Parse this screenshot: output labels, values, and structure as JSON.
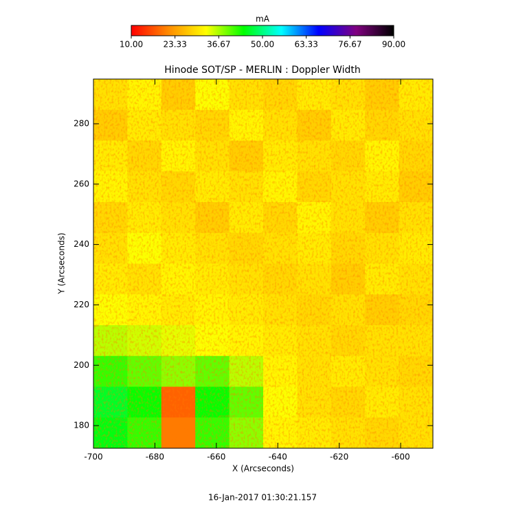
{
  "chart_data": {
    "type": "heatmap",
    "title": "Hinode SOT/SP - MERLIN : Doppler Width",
    "x_label": "X (Arcseconds)",
    "y_label": "Y (Arcseconds)",
    "timestamp": "16-Jan-2017 01:30:21.157",
    "colorbar_label": "mA",
    "colorbar_lim": [
      10,
      90
    ],
    "colorbar_ticks": [
      {
        "value": 10,
        "label": "10.00"
      },
      {
        "value": 23.33,
        "label": "23.33"
      },
      {
        "value": 36.67,
        "label": "36.67"
      },
      {
        "value": 50,
        "label": "50.00"
      },
      {
        "value": 63.33,
        "label": "63.33"
      },
      {
        "value": 76.67,
        "label": "76.67"
      },
      {
        "value": 90,
        "label": "90.00"
      }
    ],
    "colormap": [
      "#ff0000",
      "#ff8c00",
      "#ffff00",
      "#00ff00",
      "#00ffff",
      "#0000ff",
      "#800080",
      "#000000"
    ],
    "xlim": [
      -700,
      -589.5
    ],
    "ylim": [
      172.5,
      294.8
    ],
    "xticks": [
      -700,
      -680,
      -660,
      -640,
      -620,
      -600
    ],
    "yticks": [
      180,
      200,
      220,
      240,
      260,
      280
    ],
    "z": [
      [
        30,
        32,
        28,
        33,
        30,
        29,
        31,
        30,
        28,
        31
      ],
      [
        28,
        31,
        30,
        29,
        32,
        30,
        28,
        31,
        29,
        30
      ],
      [
        31,
        29,
        32,
        30,
        28,
        31,
        30,
        29,
        32,
        29
      ],
      [
        32,
        30,
        29,
        31,
        30,
        32,
        29,
        30,
        31,
        28
      ],
      [
        29,
        31,
        30,
        28,
        31,
        29,
        32,
        30,
        28,
        30
      ],
      [
        30,
        33,
        31,
        30,
        29,
        30,
        31,
        29,
        30,
        31
      ],
      [
        31,
        30,
        32,
        31,
        30,
        29,
        30,
        28,
        31,
        30
      ],
      [
        33,
        32,
        31,
        32,
        31,
        30,
        29,
        30,
        28,
        29
      ],
      [
        36,
        35,
        34,
        33,
        32,
        31,
        30,
        29,
        30,
        30
      ],
      [
        42,
        40,
        38,
        40,
        36,
        32,
        30,
        31,
        30,
        29
      ],
      [
        46,
        44,
        18,
        44,
        40,
        33,
        30,
        29,
        31,
        30
      ],
      [
        45,
        42,
        20,
        42,
        38,
        32,
        31,
        30,
        29,
        30
      ]
    ]
  }
}
